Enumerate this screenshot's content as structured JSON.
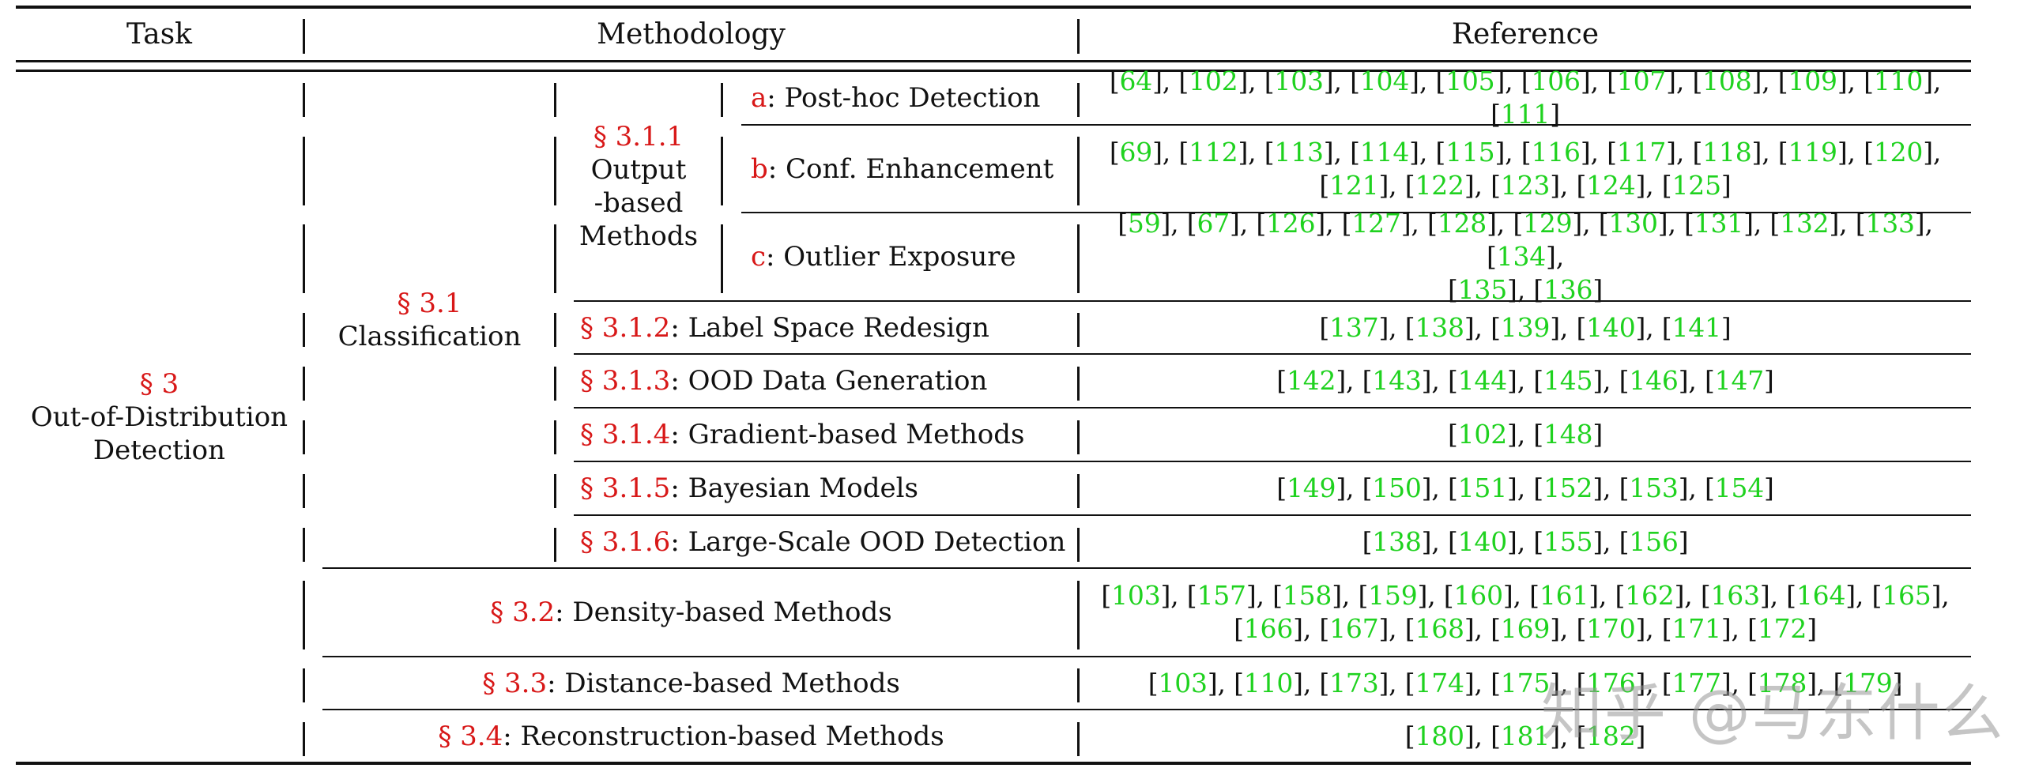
{
  "header": {
    "task": "Task",
    "methodology": "Methodology",
    "reference": "Reference"
  },
  "colors": {
    "section_red": "#d81818",
    "reference_green": "#1fd21f"
  },
  "task": {
    "section": "§ 3",
    "name_line1": "Out-of-Distribution",
    "name_line2": "Detection"
  },
  "classification": {
    "section": "§ 3.1",
    "name": "Classification"
  },
  "output_based": {
    "section": "§ 3.1.1",
    "line1": "Output",
    "line2": "-based",
    "line3": "Methods"
  },
  "rows": [
    {
      "prefix": "a",
      "label": ": Post-hoc Detection",
      "refs": [
        "64",
        "102",
        "103",
        "104",
        "105",
        "106",
        "107",
        "108",
        "109",
        "110",
        "111"
      ]
    },
    {
      "prefix": "b",
      "label": ": Conf. Enhancement",
      "refs": [
        "69",
        "112",
        "113",
        "114",
        "115",
        "116",
        "117",
        "118",
        "119",
        "120",
        "121",
        "122",
        "123",
        "124",
        "125"
      ]
    },
    {
      "prefix": "c",
      "label": ": Outlier Exposure",
      "refs": [
        "59",
        "67",
        "126",
        "127",
        "128",
        "129",
        "130",
        "131",
        "132",
        "133",
        "134",
        "135",
        "136"
      ]
    },
    {
      "prefix": "§ 3.1.2",
      "label": ": Label Space Redesign",
      "refs": [
        "137",
        "138",
        "139",
        "140",
        "141"
      ]
    },
    {
      "prefix": "§ 3.1.3",
      "label": ": OOD Data Generation",
      "refs": [
        "142",
        "143",
        "144",
        "145",
        "146",
        "147"
      ]
    },
    {
      "prefix": "§ 3.1.4",
      "label": ": Gradient-based Methods",
      "refs": [
        "102",
        "148"
      ]
    },
    {
      "prefix": "§ 3.1.5",
      "label": ": Bayesian Models",
      "refs": [
        "149",
        "150",
        "151",
        "152",
        "153",
        "154"
      ]
    },
    {
      "prefix": "§ 3.1.6",
      "label": ": Large-Scale OOD Detection",
      "refs": [
        "138",
        "140",
        "155",
        "156"
      ]
    },
    {
      "prefix": "§ 3.2",
      "label": ": Density-based Methods",
      "refs": [
        "103",
        "157",
        "158",
        "159",
        "160",
        "161",
        "162",
        "163",
        "164",
        "165",
        "166",
        "167",
        "168",
        "169",
        "170",
        "171",
        "172"
      ]
    },
    {
      "prefix": "§ 3.3",
      "label": ": Distance-based Methods",
      "refs": [
        "103",
        "110",
        "173",
        "174",
        "175",
        "176",
        "177",
        "178",
        "179"
      ]
    },
    {
      "prefix": "§ 3.4",
      "label": ": Reconstruction-based Methods",
      "refs": [
        "180",
        "181",
        "182"
      ]
    }
  ],
  "ref_lines": {
    "row0": [
      [
        "64",
        "102",
        "103",
        "104",
        "105",
        "106",
        "107",
        "108",
        "109",
        "110",
        "111"
      ]
    ],
    "row1": [
      [
        "69",
        "112",
        "113",
        "114",
        "115",
        "116",
        "117",
        "118",
        "119",
        "120"
      ],
      [
        "121",
        "122",
        "123",
        "124",
        "125"
      ]
    ],
    "row2": [
      [
        "59",
        "67",
        "126",
        "127",
        "128",
        "129",
        "130",
        "131",
        "132",
        "133",
        "134"
      ],
      [
        "135",
        "136"
      ]
    ],
    "row8": [
      [
        "103",
        "157",
        "158",
        "159",
        "160",
        "161",
        "162",
        "163",
        "164",
        "165"
      ],
      [
        "166",
        "167",
        "168",
        "169",
        "170",
        "171",
        "172"
      ]
    ]
  },
  "watermark": "知乎 @马东什么"
}
